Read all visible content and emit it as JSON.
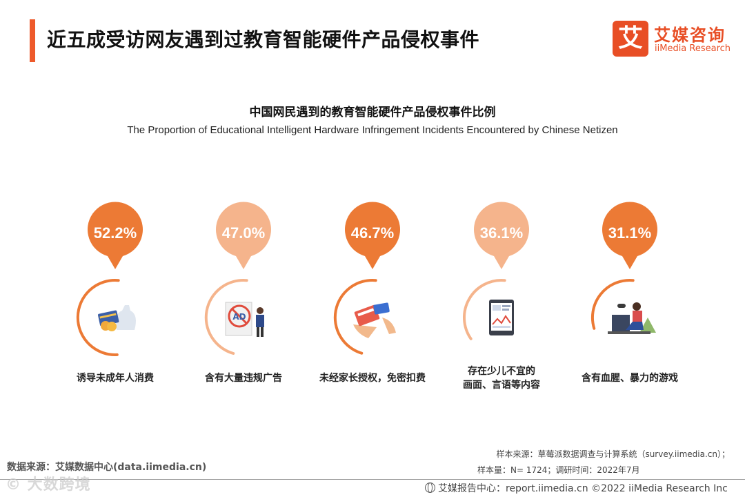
{
  "header": {
    "title": "近五成受访网友遇到过教育智能硬件产品侵权事件",
    "accent_color": "#ee5a2b"
  },
  "logo": {
    "mark": "艾",
    "name_cn": "艾媒咨询",
    "name_en": "iiMedia Research"
  },
  "chart_data": {
    "type": "bar",
    "title": "中国网民遇到的教育智能硬件产品侵权事件比例",
    "subtitle": "The Proportion of Educational Intelligent Hardware Infringement Incidents Encountered by Chinese Netizen",
    "categories": [
      [
        "诱导未成年人消费"
      ],
      [
        "含有大量违规广告"
      ],
      [
        "未经家长授权，免密扣费"
      ],
      [
        "存在少儿不宜的",
        "画面、言语等内容"
      ],
      [
        "含有血腥、暴力的游戏"
      ]
    ],
    "values": [
      52.2,
      47.0,
      46.7,
      36.1,
      31.1
    ],
    "value_labels": [
      "52.2%",
      "47.0%",
      "46.7%",
      "36.1%",
      "31.1%"
    ],
    "icons": [
      "money-bag-card-icon",
      "no-ads-icon",
      "card-payment-icon",
      "tablet-content-icon",
      "gaming-person-icon"
    ],
    "colors": {
      "dark": "#ec7a35",
      "light": "#f5b48c"
    },
    "ylim": [
      0,
      100
    ]
  },
  "footer": {
    "source": "数据来源：艾媒数据中心(data.iimedia.cn)",
    "sample_source": "样本来源：草莓派数据调查与计算系统（survey.iimedia.cn）；",
    "sample_info": "样本量：N= 1724；调研时间：2022年7月",
    "report_center": "艾媒报告中心：report.iimedia.cn   ©2022  iiMedia Research  Inc",
    "watermark": "© 大数跨境"
  }
}
